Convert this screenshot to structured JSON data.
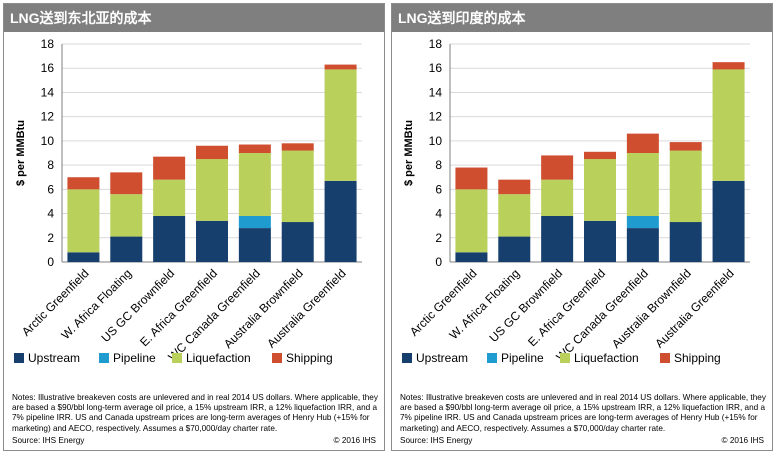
{
  "colors": {
    "Upstream": "#173f6d",
    "Pipeline": "#1f9bd0",
    "Liquefaction": "#b9d05a",
    "Shipping": "#cf4e30",
    "header_bg": "#7f7f7f",
    "grid": "#d9d9d9"
  },
  "legend": [
    "Upstream",
    "Pipeline",
    "Liquefaction",
    "Shipping"
  ],
  "panels": [
    {
      "title": "LNG送到东北亚的成本",
      "notes": "Notes: Illustrative breakeven costs are unlevered and in real 2014 US dollars. Where applicable, they are based a $90/bbl long-term average oil price, a 15% upstream IRR, a 12% liquefaction IRR, and a 7% pipeline IRR. US and Canada upstream prices are long-term averages of Henry Hub (+15% for marketing) and AECO, respectively. Assumes a $70,000/day charter rate.",
      "source": "Source: IHS Energy",
      "copyright": "© 2016 IHS"
    },
    {
      "title": "LNG送到印度的成本",
      "notes": "Notes: Illustrative breakeven costs are unlevered and in real 2014 US dollars. Where applicable, they are based a $90/bbl long-term average oil price, a 15% upstream IRR, a 12% liquefaction IRR, and a 7% pipeline IRR. US and Canada upstream prices are long-term averages of Henry Hub (+15% for marketing) and AECO, respectively. Assumes a $70,000/day charter rate.",
      "source": "Source: IHS Energy",
      "copyright": "© 2016 IHS"
    }
  ],
  "chart_data": [
    {
      "type": "bar",
      "stacked": true,
      "title": "LNG送到东北亚的成本",
      "ylabel": "$ per MMBtu",
      "ylim": [
        0,
        18
      ],
      "yticks": [
        0,
        2,
        4,
        6,
        8,
        10,
        12,
        14,
        16,
        18
      ],
      "grid": true,
      "legend_position": "bottom",
      "categories": [
        "Arctic Greenfield",
        "W. Africa Floating",
        "US GC Brownfield",
        "E. Africa Greenfield",
        "WC Canada Greenfield",
        "Australia Brownfield",
        "Australia Greenfield"
      ],
      "series": [
        {
          "name": "Upstream",
          "values": [
            0.8,
            2.1,
            3.8,
            3.4,
            2.8,
            3.3,
            6.7
          ]
        },
        {
          "name": "Pipeline",
          "values": [
            0,
            0,
            0,
            0,
            1.0,
            0,
            0
          ]
        },
        {
          "name": "Liquefaction",
          "values": [
            5.2,
            3.5,
            3.0,
            5.1,
            5.2,
            5.9,
            9.2
          ]
        },
        {
          "name": "Shipping",
          "values": [
            1.0,
            1.8,
            1.9,
            1.1,
            0.7,
            0.6,
            0.4
          ]
        }
      ]
    },
    {
      "type": "bar",
      "stacked": true,
      "title": "LNG送到印度的成本",
      "ylabel": "$ per MMBtu",
      "ylim": [
        0,
        18
      ],
      "yticks": [
        0,
        2,
        4,
        6,
        8,
        10,
        12,
        14,
        16,
        18
      ],
      "grid": true,
      "legend_position": "bottom",
      "categories": [
        "Arctic Greenfield",
        "W. Africa Floating",
        "US GC Brownfield",
        "E. Africa Greenfield",
        "WC Canada Greenfield",
        "Australia Brownfield",
        "Australia Greenfield"
      ],
      "series": [
        {
          "name": "Upstream",
          "values": [
            0.8,
            2.1,
            3.8,
            3.4,
            2.8,
            3.3,
            6.7
          ]
        },
        {
          "name": "Pipeline",
          "values": [
            0,
            0,
            0,
            0,
            1.0,
            0,
            0
          ]
        },
        {
          "name": "Liquefaction",
          "values": [
            5.2,
            3.5,
            3.0,
            5.1,
            5.2,
            5.9,
            9.2
          ]
        },
        {
          "name": "Shipping",
          "values": [
            1.8,
            1.2,
            2.0,
            0.6,
            1.6,
            0.7,
            0.6
          ]
        }
      ]
    }
  ]
}
